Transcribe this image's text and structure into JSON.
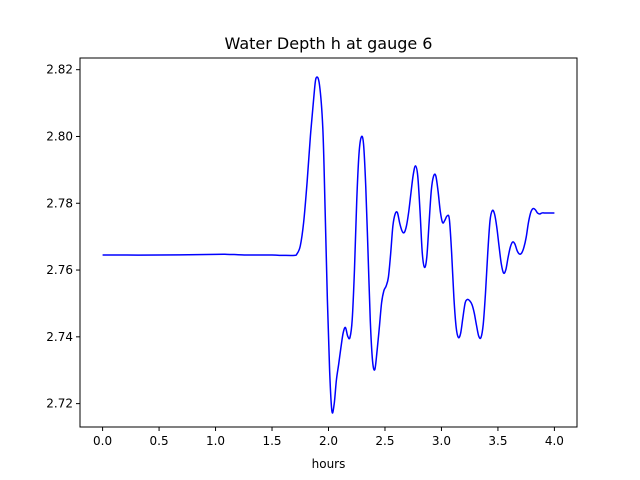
{
  "chart_data": {
    "type": "line",
    "title": "Water Depth h at gauge 6",
    "xlabel": "hours",
    "ylabel": "",
    "xlim": [
      -0.2,
      4.2
    ],
    "ylim": [
      2.713,
      2.8235
    ],
    "xticks": [
      0.0,
      0.5,
      1.0,
      1.5,
      2.0,
      2.5,
      3.0,
      3.5,
      4.0
    ],
    "xtick_labels": [
      "0.0",
      "0.5",
      "1.0",
      "1.5",
      "2.0",
      "2.5",
      "3.0",
      "3.5",
      "4.0"
    ],
    "yticks": [
      2.72,
      2.74,
      2.76,
      2.78,
      2.8,
      2.82
    ],
    "ytick_labels": [
      "2.72",
      "2.74",
      "2.76",
      "2.78",
      "2.80",
      "2.82"
    ],
    "grid": false,
    "legend": "none",
    "series": [
      {
        "color": "#0000ff",
        "x": [
          0.0,
          0.5,
          1.0,
          1.1,
          1.2,
          1.3,
          1.4,
          1.5,
          1.6,
          1.7,
          1.72,
          1.75,
          1.78,
          1.81,
          1.84,
          1.87,
          1.89,
          1.92,
          1.95,
          1.97,
          1.99,
          2.01,
          2.03,
          2.05,
          2.07,
          2.09,
          2.11,
          2.13,
          2.15,
          2.17,
          2.19,
          2.21,
          2.23,
          2.25,
          2.27,
          2.29,
          2.31,
          2.33,
          2.35,
          2.37,
          2.39,
          2.41,
          2.43,
          2.45,
          2.47,
          2.49,
          2.51,
          2.53,
          2.55,
          2.57,
          2.59,
          2.61,
          2.63,
          2.65,
          2.67,
          2.69,
          2.71,
          2.73,
          2.75,
          2.77,
          2.79,
          2.81,
          2.83,
          2.85,
          2.87,
          2.89,
          2.91,
          2.93,
          2.95,
          2.97,
          2.99,
          3.01,
          3.03,
          3.05,
          3.07,
          3.09,
          3.11,
          3.13,
          3.15,
          3.17,
          3.19,
          3.21,
          3.23,
          3.25,
          3.27,
          3.29,
          3.31,
          3.33,
          3.35,
          3.37,
          3.39,
          3.41,
          3.43,
          3.45,
          3.47,
          3.49,
          3.51,
          3.53,
          3.55,
          3.57,
          3.59,
          3.61,
          3.63,
          3.65,
          3.67,
          3.69,
          3.71,
          3.73,
          3.75,
          3.77,
          3.79,
          3.81,
          3.83,
          3.85,
          3.87,
          3.89,
          3.91,
          3.93,
          3.95,
          3.97,
          4.0
        ],
        "values": [
          2.7645,
          2.7645,
          2.7647,
          2.7647,
          2.7646,
          2.7645,
          2.7645,
          2.7645,
          2.7644,
          2.7644,
          2.7648,
          2.7672,
          2.7743,
          2.7861,
          2.8002,
          2.8118,
          2.8175,
          2.8155,
          2.8022,
          2.7781,
          2.7512,
          2.7298,
          2.7178,
          2.7198,
          2.7271,
          2.7318,
          2.7368,
          2.7412,
          2.7428,
          2.7402,
          2.7398,
          2.7452,
          2.7602,
          2.7808,
          2.7948,
          2.7998,
          2.7978,
          2.7849,
          2.7652,
          2.7448,
          2.7328,
          2.7302,
          2.7358,
          2.7428,
          2.7502,
          2.7538,
          2.7552,
          2.7578,
          2.7648,
          2.7732,
          2.7768,
          2.7772,
          2.7741,
          2.7718,
          2.7712,
          2.7732,
          2.7774,
          2.7831,
          2.7885,
          2.7912,
          2.7882,
          2.7778,
          2.7652,
          2.7608,
          2.7638,
          2.7739,
          2.7838,
          2.7881,
          2.7882,
          2.7836,
          2.7775,
          2.7742,
          2.7749,
          2.7762,
          2.7752,
          2.7652,
          2.7518,
          2.7429,
          2.7398,
          2.7411,
          2.7458,
          2.7502,
          2.7512,
          2.7508,
          2.7497,
          2.7472,
          2.7435,
          2.7402,
          2.7398,
          2.7438,
          2.7532,
          2.7652,
          2.7748,
          2.7778,
          2.7768,
          2.7728,
          2.7671,
          2.7618,
          2.7591,
          2.7601,
          2.7638,
          2.7669,
          2.7684,
          2.7678,
          2.7658,
          2.7648,
          2.7651,
          2.7668,
          2.7698,
          2.7742,
          2.7772,
          2.7784,
          2.7781,
          2.7771,
          2.7768,
          2.7771,
          2.7771,
          2.7771,
          2.7771,
          2.7771,
          2.7771
        ]
      }
    ]
  }
}
